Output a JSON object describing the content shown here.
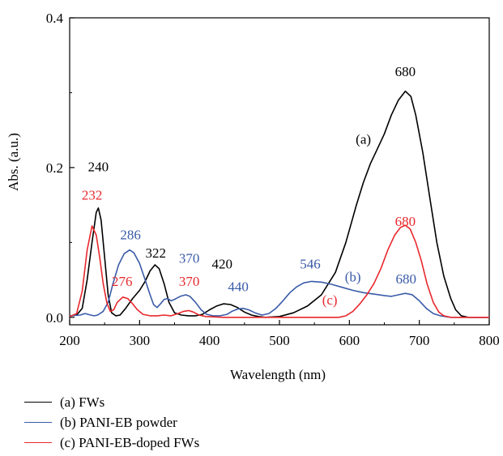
{
  "chart_data": {
    "type": "line",
    "title": "",
    "xlabel": "Wavelength (nm)",
    "ylabel": "Abs. (a.u.)",
    "xlim": [
      200,
      800
    ],
    "ylim": [
      -0.01,
      0.4
    ],
    "x_ticks": [
      200,
      300,
      400,
      500,
      600,
      700,
      800
    ],
    "x_tick_labels": [
      "200",
      "300",
      "400",
      "500",
      "600",
      "700",
      "800"
    ],
    "y_ticks": [
      0.0,
      0.2,
      0.4
    ],
    "y_tick_labels": [
      "0.0",
      "0.2",
      "0.4"
    ],
    "grid": false,
    "legend_position": "bottom-left-below",
    "series": [
      {
        "name": "(a) FWs",
        "color": "#000000",
        "points": [
          [
            200,
            0.002
          ],
          [
            210,
            0.003
          ],
          [
            218,
            0.012
          ],
          [
            225,
            0.05
          ],
          [
            232,
            0.1
          ],
          [
            238,
            0.14
          ],
          [
            241,
            0.146
          ],
          [
            245,
            0.13
          ],
          [
            250,
            0.08
          ],
          [
            255,
            0.03
          ],
          [
            260,
            0.006
          ],
          [
            266,
            0.002
          ],
          [
            272,
            0.003
          ],
          [
            280,
            0.012
          ],
          [
            290,
            0.025
          ],
          [
            300,
            0.036
          ],
          [
            308,
            0.048
          ],
          [
            315,
            0.062
          ],
          [
            322,
            0.07
          ],
          [
            328,
            0.065
          ],
          [
            335,
            0.045
          ],
          [
            342,
            0.02
          ],
          [
            350,
            0.006
          ],
          [
            360,
            0.003
          ],
          [
            370,
            0.002
          ],
          [
            380,
            0.002
          ],
          [
            390,
            0.004
          ],
          [
            400,
            0.01
          ],
          [
            410,
            0.015
          ],
          [
            420,
            0.018
          ],
          [
            430,
            0.017
          ],
          [
            440,
            0.013
          ],
          [
            450,
            0.007
          ],
          [
            460,
            0.003
          ],
          [
            470,
            0.001
          ],
          [
            480,
            0.0
          ],
          [
            500,
            0.001
          ],
          [
            520,
            0.006
          ],
          [
            540,
            0.015
          ],
          [
            560,
            0.03
          ],
          [
            580,
            0.06
          ],
          [
            595,
            0.1
          ],
          [
            610,
            0.15
          ],
          [
            620,
            0.18
          ],
          [
            630,
            0.205
          ],
          [
            640,
            0.225
          ],
          [
            650,
            0.245
          ],
          [
            660,
            0.27
          ],
          [
            670,
            0.29
          ],
          [
            680,
            0.302
          ],
          [
            688,
            0.295
          ],
          [
            695,
            0.27
          ],
          [
            705,
            0.22
          ],
          [
            715,
            0.16
          ],
          [
            725,
            0.1
          ],
          [
            735,
            0.055
          ],
          [
            745,
            0.025
          ],
          [
            752,
            0.01
          ],
          [
            760,
            0.002
          ],
          [
            770,
            0.0
          ],
          [
            800,
            0.0
          ]
        ]
      },
      {
        "name": "(b) PANI-EB powder",
        "color": "#3a5ba8",
        "points": [
          [
            200,
            0.002
          ],
          [
            215,
            0.003
          ],
          [
            222,
            0.005
          ],
          [
            230,
            0.003
          ],
          [
            235,
            0.002
          ],
          [
            240,
            0.003
          ],
          [
            248,
            0.008
          ],
          [
            255,
            0.02
          ],
          [
            262,
            0.045
          ],
          [
            270,
            0.07
          ],
          [
            278,
            0.085
          ],
          [
            286,
            0.09
          ],
          [
            292,
            0.086
          ],
          [
            300,
            0.072
          ],
          [
            308,
            0.05
          ],
          [
            315,
            0.03
          ],
          [
            320,
            0.017
          ],
          [
            325,
            0.013
          ],
          [
            330,
            0.018
          ],
          [
            335,
            0.024
          ],
          [
            340,
            0.025
          ],
          [
            345,
            0.022
          ],
          [
            350,
            0.024
          ],
          [
            358,
            0.028
          ],
          [
            366,
            0.03
          ],
          [
            372,
            0.028
          ],
          [
            380,
            0.02
          ],
          [
            388,
            0.01
          ],
          [
            396,
            0.004
          ],
          [
            405,
            0.002
          ],
          [
            415,
            0.002
          ],
          [
            425,
            0.004
          ],
          [
            432,
            0.008
          ],
          [
            440,
            0.011
          ],
          [
            448,
            0.012
          ],
          [
            456,
            0.01
          ],
          [
            465,
            0.006
          ],
          [
            475,
            0.003
          ],
          [
            485,
            0.005
          ],
          [
            495,
            0.012
          ],
          [
            505,
            0.022
          ],
          [
            515,
            0.033
          ],
          [
            525,
            0.041
          ],
          [
            535,
            0.046
          ],
          [
            546,
            0.048
          ],
          [
            560,
            0.047
          ],
          [
            575,
            0.044
          ],
          [
            590,
            0.04
          ],
          [
            605,
            0.036
          ],
          [
            620,
            0.033
          ],
          [
            635,
            0.031
          ],
          [
            650,
            0.029
          ],
          [
            660,
            0.028
          ],
          [
            670,
            0.03
          ],
          [
            680,
            0.032
          ],
          [
            690,
            0.03
          ],
          [
            700,
            0.022
          ],
          [
            710,
            0.012
          ],
          [
            720,
            0.005
          ],
          [
            730,
            0.002
          ],
          [
            745,
            0.0
          ],
          [
            800,
            0.0
          ]
        ]
      },
      {
        "name": "(c) PANI-EB-doped FWs",
        "color": "#e8282d",
        "points": [
          [
            200,
            0.001
          ],
          [
            210,
            0.005
          ],
          [
            218,
            0.035
          ],
          [
            225,
            0.09
          ],
          [
            232,
            0.122
          ],
          [
            238,
            0.11
          ],
          [
            243,
            0.08
          ],
          [
            248,
            0.045
          ],
          [
            253,
            0.02
          ],
          [
            258,
            0.008
          ],
          [
            263,
            0.01
          ],
          [
            268,
            0.02
          ],
          [
            276,
            0.027
          ],
          [
            283,
            0.025
          ],
          [
            290,
            0.018
          ],
          [
            297,
            0.01
          ],
          [
            305,
            0.004
          ],
          [
            315,
            0.002
          ],
          [
            325,
            0.002
          ],
          [
            335,
            0.003
          ],
          [
            345,
            0.002
          ],
          [
            355,
            0.005
          ],
          [
            363,
            0.008
          ],
          [
            370,
            0.009
          ],
          [
            377,
            0.007
          ],
          [
            385,
            0.003
          ],
          [
            395,
            0.001
          ],
          [
            420,
            0.0
          ],
          [
            500,
            0.0
          ],
          [
            560,
            0.0
          ],
          [
            585,
            0.0
          ],
          [
            595,
            0.002
          ],
          [
            605,
            0.008
          ],
          [
            615,
            0.018
          ],
          [
            625,
            0.03
          ],
          [
            635,
            0.045
          ],
          [
            645,
            0.065
          ],
          [
            655,
            0.09
          ],
          [
            665,
            0.11
          ],
          [
            673,
            0.12
          ],
          [
            680,
            0.123
          ],
          [
            687,
            0.118
          ],
          [
            695,
            0.1
          ],
          [
            703,
            0.075
          ],
          [
            711,
            0.045
          ],
          [
            720,
            0.02
          ],
          [
            728,
            0.007
          ],
          [
            735,
            0.002
          ],
          [
            745,
            0.0
          ],
          [
            800,
            0.0
          ]
        ]
      }
    ],
    "annotations": [
      {
        "text": "240",
        "x": 241,
        "y": 0.195,
        "color": "#000000"
      },
      {
        "text": "232",
        "x": 232,
        "y": 0.157,
        "color": "#e8282d"
      },
      {
        "text": "286",
        "x": 287,
        "y": 0.104,
        "color": "#3a5ba8"
      },
      {
        "text": "322",
        "x": 323,
        "y": 0.08,
        "color": "#000000"
      },
      {
        "text": "276",
        "x": 275,
        "y": 0.042,
        "color": "#e8282d"
      },
      {
        "text": "370",
        "x": 371,
        "y": 0.073,
        "color": "#3a5ba8"
      },
      {
        "text": "370",
        "x": 371,
        "y": 0.042,
        "color": "#e8282d"
      },
      {
        "text": "420",
        "x": 418,
        "y": 0.065,
        "color": "#000000"
      },
      {
        "text": "440",
        "x": 441,
        "y": 0.035,
        "color": "#3a5ba8"
      },
      {
        "text": "546",
        "x": 544,
        "y": 0.065,
        "color": "#3a5ba8"
      },
      {
        "text": "(b)",
        "x": 605,
        "y": 0.048,
        "color": "#3a5ba8"
      },
      {
        "text": "680",
        "x": 681,
        "y": 0.045,
        "color": "#3a5ba8"
      },
      {
        "text": "(c)",
        "x": 572,
        "y": 0.017,
        "color": "#e8282d"
      },
      {
        "text": "680",
        "x": 680,
        "y": 0.122,
        "color": "#e8282d"
      },
      {
        "text": "(a)",
        "x": 620,
        "y": 0.232,
        "color": "#000000"
      },
      {
        "text": "680",
        "x": 680,
        "y": 0.322,
        "color": "#000000"
      }
    ]
  }
}
